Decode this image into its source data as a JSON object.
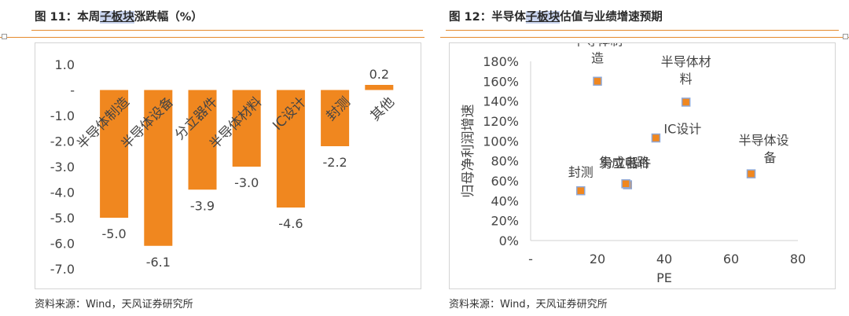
{
  "left_panel": {
    "title_prefix": "图 11：本周",
    "title_highlight": "子板块",
    "title_suffix": "涨跌幅（%）",
    "source": "资料来源：Wind，天风证券研究所"
  },
  "right_panel": {
    "title_prefix": "图 12：半导体",
    "title_highlight": "子板块",
    "title_suffix": "估值与业绩增速预期",
    "source": "资料来源：Wind，天风证券研究所"
  },
  "chart_data": [
    {
      "type": "bar",
      "title": "",
      "categories": [
        "半导体制造",
        "半导体设备",
        "分立器件",
        "半导体材料",
        "IC设计",
        "封测",
        "其他"
      ],
      "values": [
        -5.0,
        -6.1,
        -3.9,
        -3.0,
        -4.6,
        -2.2,
        0.2
      ],
      "value_labels": [
        "-5.0",
        "-6.1",
        "-3.9",
        "-3.0",
        "-4.6",
        "-2.2",
        "0.2"
      ],
      "ylim": [
        -7.0,
        1.0
      ],
      "yticks": [
        1.0,
        0,
        -1.0,
        -2.0,
        -3.0,
        -4.0,
        -5.0,
        -6.0,
        -7.0
      ],
      "ytick_labels": [
        "1.0",
        "-",
        "-1.0",
        "-2.0",
        "-3.0",
        "-4.0",
        "-5.0",
        "-6.0",
        "-7.0"
      ],
      "xlabel": "",
      "ylabel": "",
      "grid": false,
      "bar_color": "#f0871f"
    },
    {
      "type": "scatter",
      "title": "",
      "points": [
        {
          "label": "半导体制造",
          "x": 20,
          "y": 160
        },
        {
          "label": "半导体材料",
          "x": 46.5,
          "y": 139
        },
        {
          "label": "IC设计",
          "x": 37.5,
          "y": 103
        },
        {
          "label": "半导体设备",
          "x": 66,
          "y": 67
        },
        {
          "label": "分立器件",
          "x": 29,
          "y": 56
        },
        {
          "label": "集成电路",
          "x": 28.5,
          "y": 57
        },
        {
          "label": "封测",
          "x": 15,
          "y": 50
        }
      ],
      "xlim": [
        0,
        80
      ],
      "ylim": [
        0,
        180
      ],
      "xticks": [
        0,
        20,
        40,
        60,
        80
      ],
      "xtick_labels": [
        "-",
        "20",
        "40",
        "60",
        "80"
      ],
      "yticks": [
        0,
        20,
        40,
        60,
        80,
        100,
        120,
        140,
        160,
        180
      ],
      "ytick_labels": [
        "0%",
        "20%",
        "40%",
        "60%",
        "80%",
        "100%",
        "120%",
        "140%",
        "160%",
        "180%"
      ],
      "xlabel": "PE",
      "ylabel": "归母净利润增速",
      "grid": false,
      "marker_fill": "#f0871f",
      "marker_edge": "#8fa8d6"
    }
  ]
}
